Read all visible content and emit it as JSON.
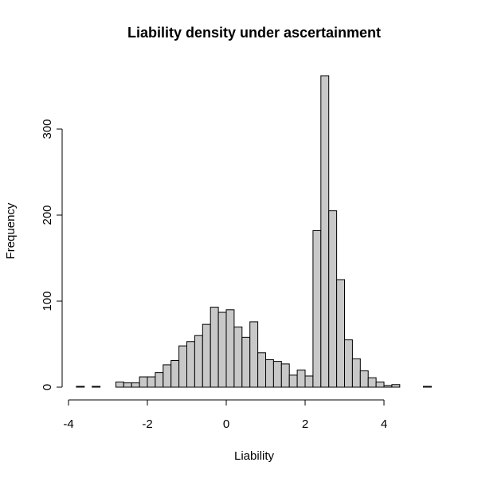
{
  "chart_data": {
    "type": "bar",
    "title": "Liability density under ascertainment",
    "xlabel": "Liability",
    "ylabel": "Frequency",
    "bin_width": 0.2,
    "bins": [
      {
        "x0": -3.8,
        "x1": -3.6,
        "count": 1
      },
      {
        "x0": -3.6,
        "x1": -3.4,
        "count": 0
      },
      {
        "x0": -3.4,
        "x1": -3.2,
        "count": 1
      },
      {
        "x0": -3.2,
        "x1": -3.0,
        "count": 0
      },
      {
        "x0": -3.0,
        "x1": -2.8,
        "count": 0
      },
      {
        "x0": -2.8,
        "x1": -2.6,
        "count": 6
      },
      {
        "x0": -2.6,
        "x1": -2.4,
        "count": 5
      },
      {
        "x0": -2.4,
        "x1": -2.2,
        "count": 5
      },
      {
        "x0": -2.2,
        "x1": -2.0,
        "count": 12
      },
      {
        "x0": -2.0,
        "x1": -1.8,
        "count": 12
      },
      {
        "x0": -1.8,
        "x1": -1.6,
        "count": 17
      },
      {
        "x0": -1.6,
        "x1": -1.4,
        "count": 26
      },
      {
        "x0": -1.4,
        "x1": -1.2,
        "count": 31
      },
      {
        "x0": -1.2,
        "x1": -1.0,
        "count": 48
      },
      {
        "x0": -1.0,
        "x1": -0.8,
        "count": 53
      },
      {
        "x0": -0.8,
        "x1": -0.6,
        "count": 60
      },
      {
        "x0": -0.6,
        "x1": -0.4,
        "count": 73
      },
      {
        "x0": -0.4,
        "x1": -0.2,
        "count": 93
      },
      {
        "x0": -0.2,
        "x1": 0.0,
        "count": 87
      },
      {
        "x0": 0.0,
        "x1": 0.2,
        "count": 90
      },
      {
        "x0": 0.2,
        "x1": 0.4,
        "count": 70
      },
      {
        "x0": 0.4,
        "x1": 0.6,
        "count": 58
      },
      {
        "x0": 0.6,
        "x1": 0.8,
        "count": 76
      },
      {
        "x0": 0.8,
        "x1": 1.0,
        "count": 40
      },
      {
        "x0": 1.0,
        "x1": 1.2,
        "count": 32
      },
      {
        "x0": 1.2,
        "x1": 1.4,
        "count": 30
      },
      {
        "x0": 1.4,
        "x1": 1.6,
        "count": 27
      },
      {
        "x0": 1.6,
        "x1": 1.8,
        "count": 14
      },
      {
        "x0": 1.8,
        "x1": 2.0,
        "count": 20
      },
      {
        "x0": 2.0,
        "x1": 2.2,
        "count": 13
      },
      {
        "x0": 2.2,
        "x1": 2.4,
        "count": 182
      },
      {
        "x0": 2.4,
        "x1": 2.6,
        "count": 362
      },
      {
        "x0": 2.6,
        "x1": 2.8,
        "count": 205
      },
      {
        "x0": 2.8,
        "x1": 3.0,
        "count": 125
      },
      {
        "x0": 3.0,
        "x1": 3.2,
        "count": 55
      },
      {
        "x0": 3.2,
        "x1": 3.4,
        "count": 33
      },
      {
        "x0": 3.4,
        "x1": 3.6,
        "count": 19
      },
      {
        "x0": 3.6,
        "x1": 3.8,
        "count": 11
      },
      {
        "x0": 3.8,
        "x1": 4.0,
        "count": 6
      },
      {
        "x0": 4.0,
        "x1": 4.2,
        "count": 2
      },
      {
        "x0": 4.2,
        "x1": 4.4,
        "count": 3
      },
      {
        "x0": 4.4,
        "x1": 4.6,
        "count": 0
      },
      {
        "x0": 4.6,
        "x1": 4.8,
        "count": 0
      },
      {
        "x0": 4.8,
        "x1": 5.0,
        "count": 0
      },
      {
        "x0": 5.0,
        "x1": 5.2,
        "count": 1
      }
    ],
    "xticks": [
      -4,
      -2,
      0,
      2,
      4
    ],
    "yticks": [
      0,
      100,
      200,
      300
    ],
    "xlim": [
      -4,
      5.2
    ],
    "ylim": [
      0,
      362
    ],
    "colors": {
      "bar_fill": "#c8c8c8",
      "bar_stroke": "#000000"
    },
    "grid": false
  }
}
